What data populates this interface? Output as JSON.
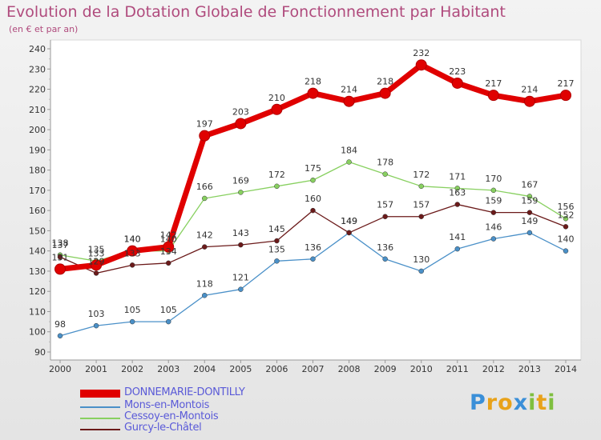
{
  "header": {
    "title": "Evolution de la Dotation Globale de Fonctionnement par Habitant",
    "subtitle": "(en € et par an)"
  },
  "logo": {
    "letters": [
      "P",
      "r",
      "o",
      "x",
      "i",
      "t",
      "i"
    ],
    "colors": [
      "#3a8fd8",
      "#e8a21a",
      "#e8a21a",
      "#3a8fd8",
      "#7fbf3f",
      "#e8a21a",
      "#7fbf3f"
    ]
  },
  "chart_data": {
    "type": "line",
    "x": [
      "2000",
      "2001",
      "2002",
      "2003",
      "2004",
      "2005",
      "2006",
      "2007",
      "2008",
      "2009",
      "2010",
      "2011",
      "2012",
      "2013",
      "2014"
    ],
    "ylim": [
      90,
      240
    ],
    "yticks": [
      90,
      100,
      110,
      120,
      130,
      140,
      150,
      160,
      170,
      180,
      190,
      200,
      210,
      220,
      230,
      240
    ],
    "grid": false,
    "legend_position": "bottom-left",
    "series": [
      {
        "name": "DONNEMARIE-DONTILLY",
        "color": "#e00000",
        "values": [
          131,
          133,
          140,
          142,
          197,
          203,
          210,
          218,
          214,
          218,
          232,
          223,
          217,
          214,
          217
        ]
      },
      {
        "name": "Mons-en-Montois",
        "color": "#4a90c8",
        "values": [
          98,
          103,
          105,
          105,
          118,
          121,
          135,
          136,
          149,
          136,
          130,
          141,
          146,
          149,
          140
        ]
      },
      {
        "name": "Cessoy-en-Montois",
        "color": "#88d060",
        "values": [
          138,
          135,
          140,
          140,
          166,
          169,
          172,
          175,
          184,
          178,
          172,
          171,
          170,
          167,
          156
        ]
      },
      {
        "name": "Gurcy-le-Châtel",
        "color": "#6b1a1a",
        "values": [
          137,
          129,
          133,
          134,
          142,
          143,
          145,
          160,
          149,
          157,
          157,
          163,
          159,
          159,
          152
        ]
      }
    ]
  }
}
